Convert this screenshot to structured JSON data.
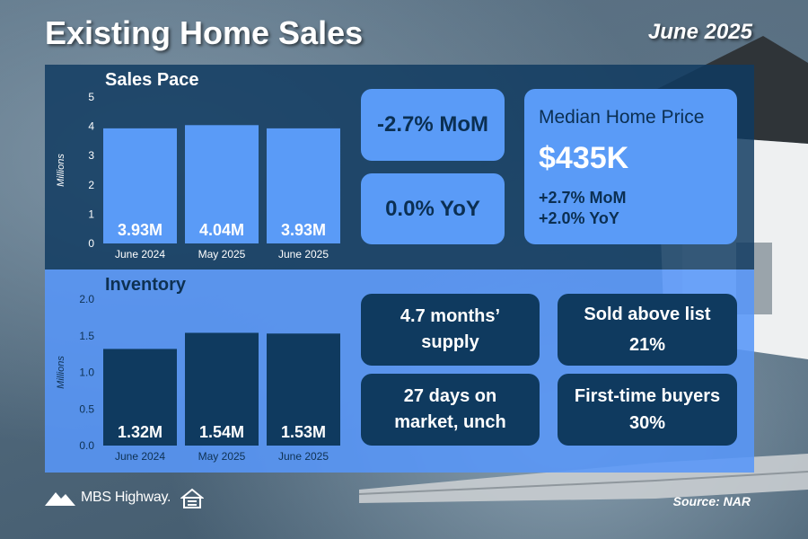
{
  "header": {
    "title": "Existing Home Sales",
    "date": "June 2025"
  },
  "colors": {
    "top_panel": "#0f3a5f",
    "bottom_panel": "#5896f8",
    "sales_bar": "#5a9bf7",
    "inventory_bar": "#0f3a5f"
  },
  "chart_data": [
    {
      "type": "bar",
      "title": "Sales Pace",
      "ylabel": "Millions",
      "categories": [
        "June 2024",
        "May 2025",
        "June 2025"
      ],
      "values": [
        3.93,
        4.04,
        3.93
      ],
      "labels": [
        "3.93M",
        "4.04M",
        "3.93M"
      ],
      "yticks": [
        "0",
        "1",
        "2",
        "3",
        "4",
        "5"
      ],
      "ylim": [
        0,
        5
      ],
      "grid": false
    },
    {
      "type": "bar",
      "title": "Inventory",
      "ylabel": "Millions",
      "categories": [
        "June 2024",
        "May 2025",
        "June 2025"
      ],
      "values": [
        1.32,
        1.54,
        1.53
      ],
      "labels": [
        "1.32M",
        "1.54M",
        "1.53M"
      ],
      "yticks": [
        "0.0",
        "0.5",
        "1.0",
        "1.5",
        "2.0"
      ],
      "ylim": [
        0,
        2
      ],
      "grid": false
    }
  ],
  "sales_stats": {
    "mom": "-2.7% MoM",
    "yoy": "0.0% YoY"
  },
  "median_price": {
    "label": "Median Home Price",
    "value": "$435K",
    "mom": "+2.7% MoM",
    "yoy": "+2.0% YoY"
  },
  "inventory_stats": {
    "supply": "4.7 months’ supply",
    "days": "27 days on market, unch",
    "sold_above": "Sold above list 21%",
    "first_time": "First-time buyers 30%"
  },
  "footer": {
    "brand": "MBS Highway.",
    "source": "Source: NAR"
  }
}
